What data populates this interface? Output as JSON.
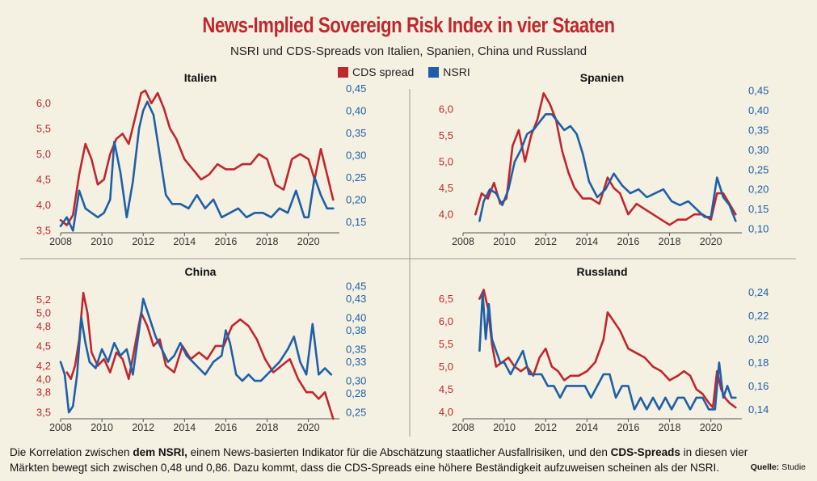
{
  "title": "News-Implied Sovereign Risk Index in vier Staaten",
  "subtitle": "NSRI und CDS-Spreads von Italien, Spanien, China und Russland",
  "legend": {
    "cds": "CDS spread",
    "nsri": "NSRI"
  },
  "colors": {
    "cds": "#c0272d",
    "nsri": "#1f5fa8",
    "title": "#c0272d"
  },
  "caption": {
    "part1": "Die Korrelation zwischen ",
    "bold1": "dem NSRI,",
    "part2": " einem News-basierten Indikator für die Abschätzung staatlicher Ausfallrisiken, und den ",
    "bold2": "CDS-Spreads",
    "part3": " in diesen vier Märkten bewegt sich zwischen 0,48 und 0,86. Dazu kommt, dass die CDS-Spreads eine höhere Beständigkeit aufzuweisen scheinen als der NSRI."
  },
  "source": {
    "label": "Quelle:",
    "value": "Studie"
  },
  "chart_data": [
    {
      "type": "line",
      "title": "Italien",
      "xlim": [
        2008,
        2021.5
      ],
      "xticks": [
        "2008",
        "2010",
        "2012",
        "2014",
        "2016",
        "2018",
        "2020"
      ],
      "ylim_left": [
        3.45,
        6.25
      ],
      "yticks_left": [
        "3,5",
        "4,0",
        "4,5",
        "5,0",
        "5,5",
        "6,0"
      ],
      "ylim_right": [
        0.125,
        0.445
      ],
      "yticks_right": [
        "0,15",
        "0,20",
        "0,25",
        "0,30",
        "0,35",
        "0,40",
        "0,45"
      ],
      "series": [
        {
          "name": "CDS spread",
          "axis": "left",
          "x": [
            2008.0,
            2008.3,
            2008.6,
            2008.9,
            2009.2,
            2009.5,
            2009.8,
            2010.1,
            2010.4,
            2010.7,
            2011.0,
            2011.3,
            2011.6,
            2011.9,
            2012.1,
            2012.4,
            2012.7,
            2013.0,
            2013.3,
            2013.6,
            2014.0,
            2014.4,
            2014.8,
            2015.2,
            2015.6,
            2016.0,
            2016.4,
            2016.8,
            2017.2,
            2017.6,
            2018.0,
            2018.4,
            2018.8,
            2019.2,
            2019.6,
            2020.0,
            2020.3,
            2020.6,
            2020.9,
            2021.2
          ],
          "y": [
            3.7,
            3.6,
            3.8,
            4.6,
            5.2,
            4.9,
            4.4,
            4.5,
            5.0,
            5.3,
            5.4,
            5.2,
            5.7,
            6.2,
            6.25,
            6.0,
            6.2,
            5.9,
            5.5,
            5.3,
            4.9,
            4.7,
            4.5,
            4.6,
            4.8,
            4.7,
            4.7,
            4.8,
            4.8,
            5.0,
            4.9,
            4.4,
            4.3,
            4.9,
            5.0,
            4.9,
            4.5,
            5.1,
            4.6,
            4.1
          ]
        },
        {
          "name": "NSRI",
          "axis": "right",
          "x": [
            2008.0,
            2008.3,
            2008.6,
            2008.9,
            2009.2,
            2009.5,
            2009.8,
            2010.1,
            2010.4,
            2010.6,
            2010.9,
            2011.2,
            2011.5,
            2011.8,
            2012.0,
            2012.2,
            2012.5,
            2012.8,
            2013.1,
            2013.4,
            2013.8,
            2014.2,
            2014.6,
            2015.0,
            2015.4,
            2015.8,
            2016.2,
            2016.6,
            2017.0,
            2017.4,
            2017.8,
            2018.2,
            2018.6,
            2019.0,
            2019.4,
            2019.8,
            2020.0,
            2020.3,
            2020.6,
            2020.9,
            2021.2
          ],
          "y": [
            0.14,
            0.16,
            0.13,
            0.22,
            0.18,
            0.17,
            0.16,
            0.17,
            0.2,
            0.33,
            0.26,
            0.16,
            0.24,
            0.36,
            0.4,
            0.42,
            0.39,
            0.3,
            0.21,
            0.19,
            0.19,
            0.18,
            0.21,
            0.18,
            0.2,
            0.16,
            0.17,
            0.18,
            0.16,
            0.17,
            0.17,
            0.16,
            0.18,
            0.17,
            0.22,
            0.16,
            0.16,
            0.25,
            0.21,
            0.18,
            0.18
          ]
        }
      ]
    },
    {
      "type": "line",
      "title": "Spanien",
      "xlim": [
        2008,
        2021.5
      ],
      "xticks": [
        "2008",
        "2010",
        "2012",
        "2014",
        "2016",
        "2018",
        "2020"
      ],
      "ylim_left": [
        3.65,
        6.35
      ],
      "yticks_left": [
        "4,0",
        "4,5",
        "5,0",
        "5,5",
        "6,0"
      ],
      "ylim_right": [
        0.09,
        0.45
      ],
      "yticks_right": [
        "0,10",
        "0,15",
        "0,20",
        "0,25",
        "0,30",
        "0,35",
        "0,40",
        "0,45"
      ],
      "series": [
        {
          "name": "CDS spread",
          "axis": "left",
          "x": [
            2008.6,
            2008.9,
            2009.2,
            2009.5,
            2009.8,
            2010.1,
            2010.4,
            2010.7,
            2011.0,
            2011.3,
            2011.6,
            2011.9,
            2012.2,
            2012.5,
            2012.8,
            2013.1,
            2013.4,
            2013.8,
            2014.2,
            2014.6,
            2015.0,
            2015.3,
            2015.6,
            2016.0,
            2016.4,
            2016.8,
            2017.2,
            2017.6,
            2018.0,
            2018.4,
            2018.8,
            2019.2,
            2019.6,
            2020.0,
            2020.3,
            2020.6,
            2020.9,
            2021.2
          ],
          "y": [
            4.0,
            4.4,
            4.3,
            4.6,
            4.2,
            4.3,
            5.3,
            5.6,
            5.0,
            5.5,
            5.8,
            6.3,
            6.1,
            5.8,
            5.2,
            4.8,
            4.5,
            4.3,
            4.3,
            4.2,
            4.7,
            4.5,
            4.4,
            4.0,
            4.2,
            4.1,
            4.0,
            3.9,
            3.8,
            3.9,
            3.9,
            4.0,
            4.0,
            3.9,
            4.4,
            4.4,
            4.2,
            4.0
          ]
        },
        {
          "name": "NSRI",
          "axis": "right",
          "x": [
            2008.8,
            2009.0,
            2009.3,
            2009.6,
            2009.9,
            2010.2,
            2010.5,
            2010.8,
            2011.1,
            2011.4,
            2011.7,
            2012.0,
            2012.3,
            2012.6,
            2012.9,
            2013.2,
            2013.5,
            2013.8,
            2014.1,
            2014.5,
            2014.9,
            2015.3,
            2015.7,
            2016.1,
            2016.5,
            2016.9,
            2017.3,
            2017.7,
            2018.1,
            2018.5,
            2018.9,
            2019.3,
            2019.7,
            2020.0,
            2020.3,
            2020.6,
            2020.9,
            2021.2
          ],
          "y": [
            0.12,
            0.17,
            0.2,
            0.19,
            0.16,
            0.2,
            0.27,
            0.3,
            0.34,
            0.35,
            0.37,
            0.39,
            0.39,
            0.37,
            0.35,
            0.36,
            0.34,
            0.29,
            0.22,
            0.18,
            0.2,
            0.24,
            0.21,
            0.19,
            0.2,
            0.18,
            0.19,
            0.2,
            0.17,
            0.16,
            0.17,
            0.15,
            0.13,
            0.13,
            0.23,
            0.18,
            0.16,
            0.12
          ]
        }
      ]
    },
    {
      "type": "line",
      "title": "China",
      "xlim": [
        2008,
        2021.5
      ],
      "xticks": [
        "2008",
        "2010",
        "2012",
        "2014",
        "2016",
        "2018",
        "2020"
      ],
      "ylim_left": [
        3.4,
        5.45
      ],
      "yticks_left": [
        "3,5",
        "3,8",
        "4,0",
        "4,2",
        "4,5",
        "4,8",
        "5,0",
        "5,2"
      ],
      "ylim_right": [
        0.24,
        0.455
      ],
      "yticks_right": [
        "0,25",
        "0,28",
        "0,30",
        "0,33",
        "0,35",
        "0,38",
        "0,40",
        "0,43",
        "0,45"
      ],
      "series": [
        {
          "name": "CDS spread",
          "axis": "left",
          "x": [
            2008.3,
            2008.5,
            2008.7,
            2008.9,
            2009.1,
            2009.3,
            2009.5,
            2009.8,
            2010.1,
            2010.4,
            2010.7,
            2011.0,
            2011.3,
            2011.6,
            2011.9,
            2012.2,
            2012.5,
            2012.8,
            2013.1,
            2013.5,
            2013.9,
            2014.3,
            2014.7,
            2015.1,
            2015.5,
            2015.9,
            2016.3,
            2016.7,
            2017.1,
            2017.5,
            2017.9,
            2018.3,
            2018.7,
            2019.1,
            2019.5,
            2019.9,
            2020.2,
            2020.5,
            2020.8,
            2021.0,
            2021.2
          ],
          "y": [
            4.1,
            4.0,
            4.2,
            4.6,
            5.3,
            5.0,
            4.4,
            4.2,
            4.3,
            4.1,
            4.4,
            4.3,
            4.0,
            4.5,
            5.0,
            4.8,
            4.5,
            4.6,
            4.2,
            4.1,
            4.5,
            4.3,
            4.4,
            4.3,
            4.5,
            4.5,
            4.8,
            4.9,
            4.8,
            4.6,
            4.3,
            4.1,
            4.2,
            4.3,
            4.0,
            3.8,
            3.8,
            3.7,
            3.8,
            3.6,
            3.4
          ]
        },
        {
          "name": "NSRI",
          "axis": "right",
          "x": [
            2008.0,
            2008.2,
            2008.4,
            2008.6,
            2008.8,
            2009.0,
            2009.2,
            2009.4,
            2009.7,
            2010.0,
            2010.3,
            2010.6,
            2010.9,
            2011.2,
            2011.5,
            2011.8,
            2012.0,
            2012.3,
            2012.6,
            2012.9,
            2013.2,
            2013.5,
            2013.8,
            2014.1,
            2014.4,
            2014.7,
            2015.0,
            2015.4,
            2015.8,
            2016.0,
            2016.2,
            2016.5,
            2016.8,
            2017.1,
            2017.4,
            2017.7,
            2018.0,
            2018.3,
            2018.6,
            2019.0,
            2019.3,
            2019.6,
            2019.9,
            2020.2,
            2020.5,
            2020.8,
            2021.1
          ],
          "y": [
            0.33,
            0.31,
            0.25,
            0.26,
            0.31,
            0.4,
            0.36,
            0.33,
            0.32,
            0.35,
            0.33,
            0.36,
            0.34,
            0.35,
            0.31,
            0.38,
            0.43,
            0.4,
            0.37,
            0.35,
            0.33,
            0.34,
            0.36,
            0.34,
            0.33,
            0.32,
            0.31,
            0.33,
            0.34,
            0.38,
            0.36,
            0.31,
            0.3,
            0.31,
            0.3,
            0.3,
            0.31,
            0.32,
            0.33,
            0.35,
            0.37,
            0.33,
            0.31,
            0.39,
            0.31,
            0.32,
            0.31
          ]
        }
      ]
    },
    {
      "type": "line",
      "title": "Russland",
      "xlim": [
        2008,
        2021.5
      ],
      "xticks": [
        "2008",
        "2010",
        "2012",
        "2014",
        "2016",
        "2018",
        "2020"
      ],
      "ylim_left": [
        3.85,
        6.85
      ],
      "yticks_left": [
        "4,0",
        "4,5",
        "5,0",
        "5,5",
        "6,0",
        "6,5"
      ],
      "ylim_right": [
        0.132,
        0.248
      ],
      "yticks_right": [
        "0,14",
        "0,16",
        "0,18",
        "0,20",
        "0,22",
        "0,24"
      ],
      "series": [
        {
          "name": "CDS spread",
          "axis": "left",
          "x": [
            2008.8,
            2009.0,
            2009.2,
            2009.4,
            2009.6,
            2009.9,
            2010.2,
            2010.5,
            2010.8,
            2011.1,
            2011.4,
            2011.7,
            2012.0,
            2012.3,
            2012.6,
            2012.9,
            2013.2,
            2013.6,
            2014.0,
            2014.4,
            2014.8,
            2015.0,
            2015.3,
            2015.6,
            2016.0,
            2016.4,
            2016.8,
            2017.2,
            2017.6,
            2018.0,
            2018.4,
            2018.7,
            2019.0,
            2019.3,
            2019.6,
            2019.9,
            2020.1,
            2020.3,
            2020.5,
            2020.7,
            2020.9,
            2021.2
          ],
          "y": [
            6.5,
            6.7,
            6.3,
            5.5,
            5.0,
            5.1,
            5.2,
            5.0,
            4.9,
            5.0,
            4.8,
            5.2,
            5.4,
            5.0,
            4.9,
            4.7,
            4.8,
            4.8,
            4.9,
            5.1,
            5.6,
            6.2,
            6.0,
            5.8,
            5.4,
            5.3,
            5.2,
            5.0,
            4.9,
            4.7,
            4.8,
            4.9,
            4.8,
            4.5,
            4.4,
            4.2,
            4.1,
            4.9,
            4.5,
            4.3,
            4.2,
            4.1
          ]
        },
        {
          "name": "NSRI",
          "axis": "right",
          "x": [
            2008.8,
            2008.95,
            2009.1,
            2009.25,
            2009.4,
            2009.6,
            2009.8,
            2010.0,
            2010.3,
            2010.6,
            2010.9,
            2011.2,
            2011.5,
            2011.8,
            2012.1,
            2012.4,
            2012.7,
            2013.0,
            2013.3,
            2013.6,
            2013.9,
            2014.2,
            2014.5,
            2014.8,
            2015.1,
            2015.4,
            2015.7,
            2016.0,
            2016.3,
            2016.6,
            2016.9,
            2017.2,
            2017.5,
            2017.8,
            2018.1,
            2018.4,
            2018.7,
            2019.0,
            2019.3,
            2019.6,
            2019.9,
            2020.2,
            2020.4,
            2020.6,
            2020.8,
            2021.0,
            2021.2
          ],
          "y": [
            0.19,
            0.24,
            0.2,
            0.23,
            0.2,
            0.19,
            0.18,
            0.18,
            0.17,
            0.18,
            0.19,
            0.17,
            0.17,
            0.17,
            0.16,
            0.16,
            0.15,
            0.16,
            0.16,
            0.16,
            0.16,
            0.15,
            0.16,
            0.17,
            0.17,
            0.15,
            0.16,
            0.16,
            0.14,
            0.15,
            0.14,
            0.15,
            0.14,
            0.15,
            0.14,
            0.15,
            0.15,
            0.14,
            0.15,
            0.15,
            0.14,
            0.14,
            0.18,
            0.15,
            0.16,
            0.15,
            0.15
          ]
        }
      ]
    }
  ]
}
